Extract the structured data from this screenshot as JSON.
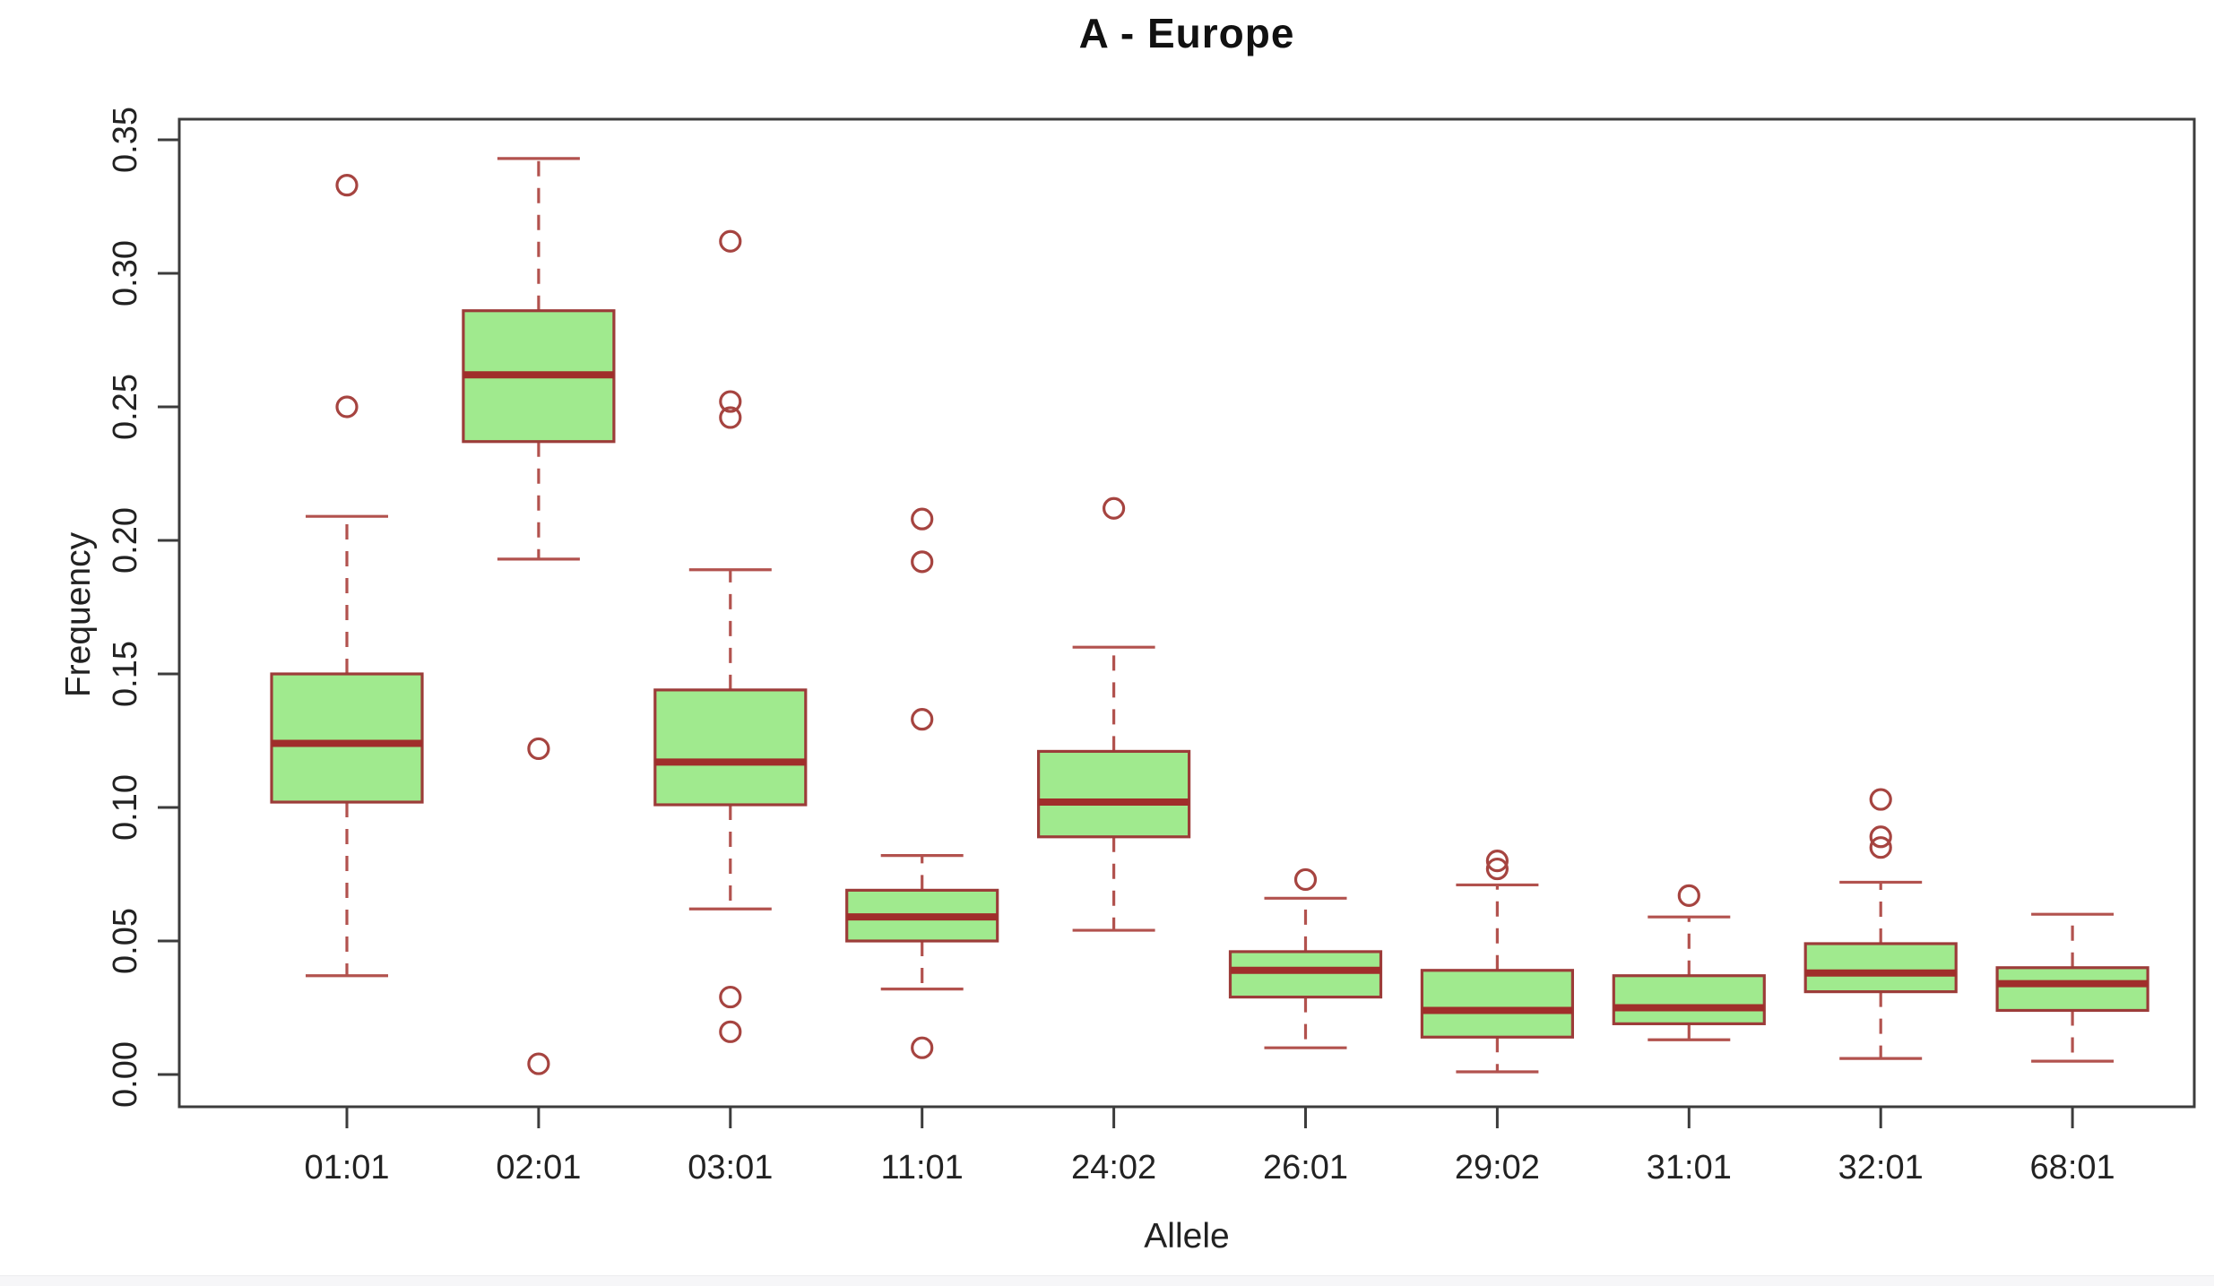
{
  "chart_data": {
    "type": "boxplot",
    "title": "A - Europe",
    "xlabel": "Allele",
    "ylabel": "Frequency",
    "ylim": [
      0.0,
      0.35
    ],
    "grid": false,
    "ytick_labels": [
      "0.00",
      "0.05",
      "0.10",
      "0.15",
      "0.20",
      "0.25",
      "0.30",
      "0.35"
    ],
    "ytick_values": [
      0.0,
      0.05,
      0.1,
      0.15,
      0.2,
      0.25,
      0.3,
      0.35
    ],
    "categories": [
      "01:01",
      "02:01",
      "03:01",
      "11:01",
      "24:02",
      "26:01",
      "29:02",
      "31:01",
      "32:01",
      "68:01"
    ],
    "series": [
      {
        "allele": "01:01",
        "low": 0.037,
        "q1": 0.102,
        "median": 0.124,
        "q3": 0.15,
        "high": 0.209,
        "outliers": [
          0.25,
          0.333
        ]
      },
      {
        "allele": "02:01",
        "low": 0.193,
        "q1": 0.237,
        "median": 0.262,
        "q3": 0.286,
        "high": 0.343,
        "outliers": [
          0.122,
          0.004
        ]
      },
      {
        "allele": "03:01",
        "low": 0.062,
        "q1": 0.101,
        "median": 0.117,
        "q3": 0.144,
        "high": 0.189,
        "outliers": [
          0.312,
          0.252,
          0.246,
          0.029,
          0.016
        ]
      },
      {
        "allele": "11:01",
        "low": 0.032,
        "q1": 0.05,
        "median": 0.059,
        "q3": 0.069,
        "high": 0.082,
        "outliers": [
          0.208,
          0.192,
          0.133,
          0.01
        ]
      },
      {
        "allele": "24:02",
        "low": 0.054,
        "q1": 0.089,
        "median": 0.102,
        "q3": 0.121,
        "high": 0.16,
        "outliers": [
          0.212
        ]
      },
      {
        "allele": "26:01",
        "low": 0.01,
        "q1": 0.029,
        "median": 0.039,
        "q3": 0.046,
        "high": 0.066,
        "outliers": [
          0.073
        ]
      },
      {
        "allele": "29:02",
        "low": 0.001,
        "q1": 0.014,
        "median": 0.024,
        "q3": 0.039,
        "high": 0.071,
        "outliers": [
          0.08,
          0.077
        ]
      },
      {
        "allele": "31:01",
        "low": 0.013,
        "q1": 0.019,
        "median": 0.025,
        "q3": 0.037,
        "high": 0.059,
        "outliers": [
          0.067
        ]
      },
      {
        "allele": "32:01",
        "low": 0.006,
        "q1": 0.031,
        "median": 0.038,
        "q3": 0.049,
        "high": 0.072,
        "outliers": [
          0.103,
          0.089,
          0.085
        ]
      },
      {
        "allele": "68:01",
        "low": 0.005,
        "q1": 0.024,
        "median": 0.034,
        "q3": 0.04,
        "high": 0.06,
        "outliers": []
      }
    ],
    "colors": {
      "box_fill": "#a0ea8e",
      "box_border": "#9c3c39",
      "median": "#a02e2b",
      "whisker": "#b2524e",
      "outlier": "#a64440",
      "frame": "#3c3c3c",
      "tick_text": "#222222"
    },
    "legend": null
  }
}
